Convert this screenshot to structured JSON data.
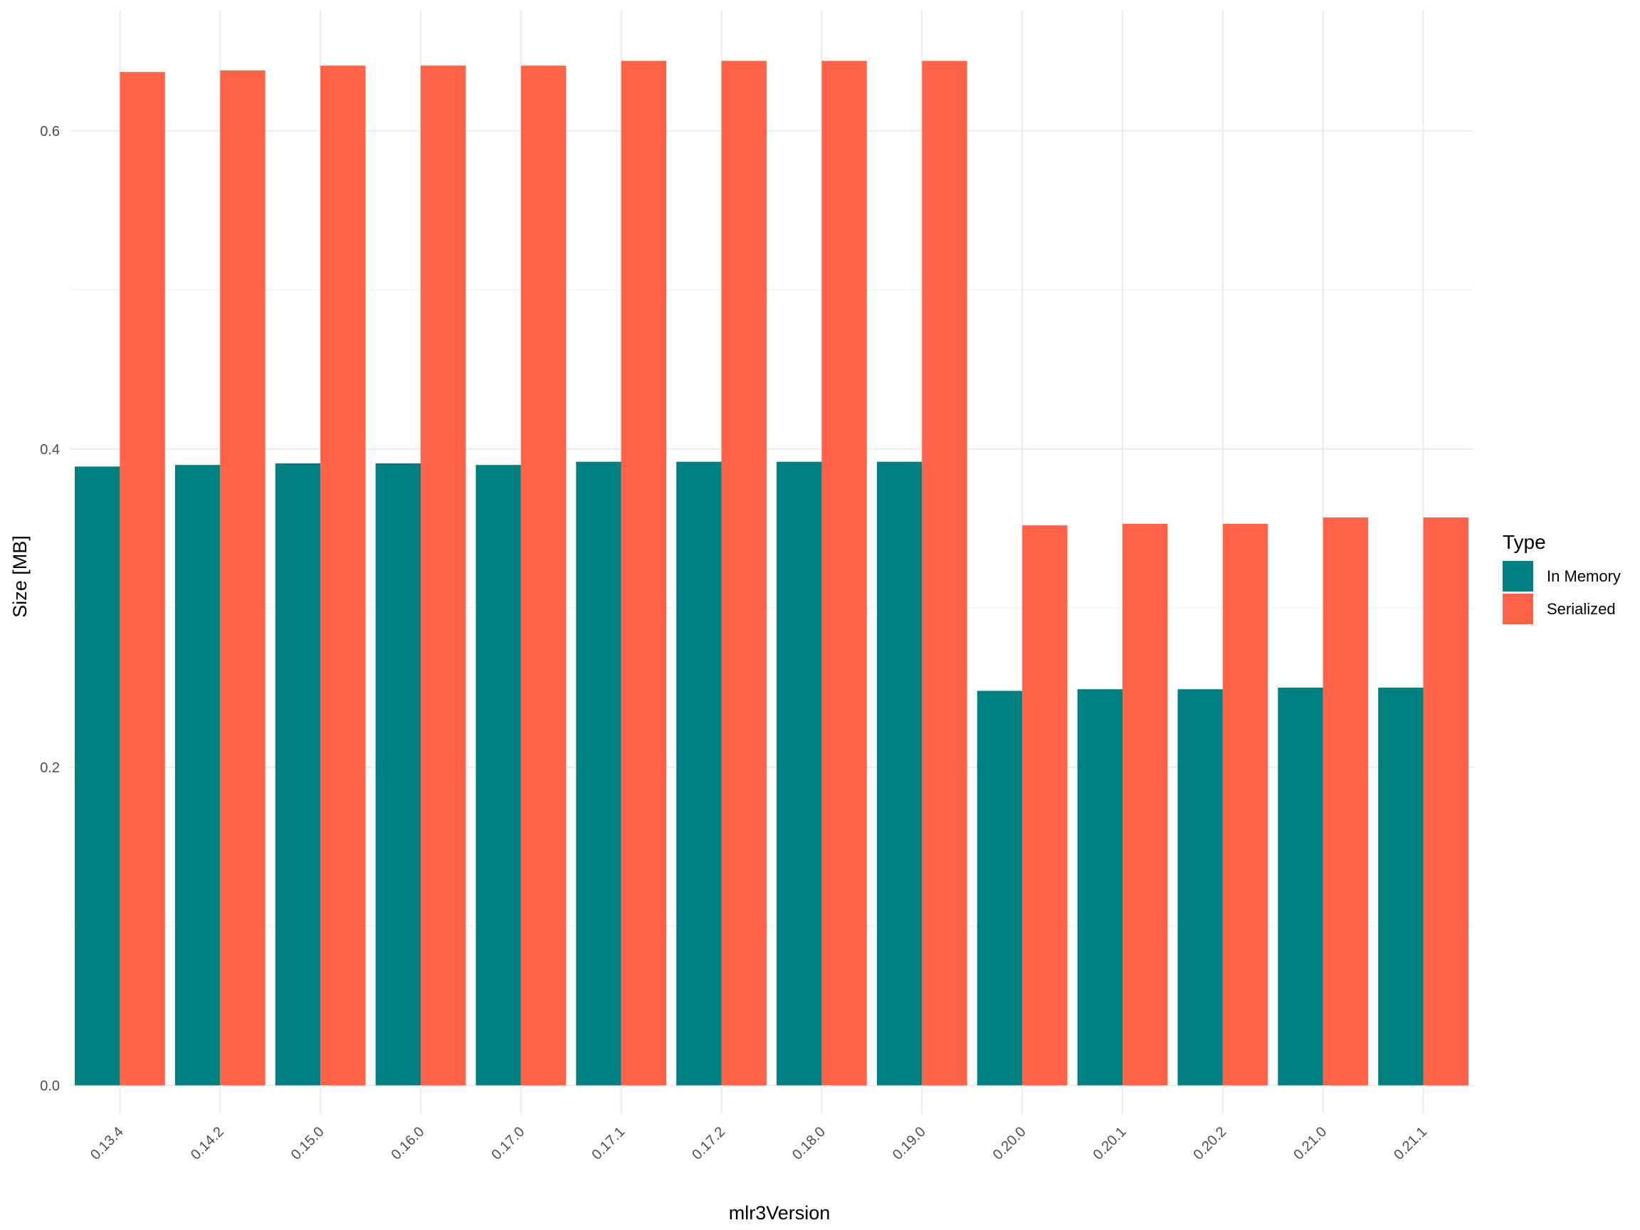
{
  "chart_data": {
    "type": "bar",
    "title": "",
    "xlabel": "mlr3Version",
    "ylabel": "Size [MB]",
    "ylim": [
      -0.018,
      0.676
    ],
    "y_ticks": [
      0.0,
      0.2,
      0.4,
      0.6
    ],
    "y_tick_labels": [
      "0.0",
      "0.2",
      "0.4",
      "0.6"
    ],
    "grid": true,
    "legend": {
      "title": "Type",
      "position": "right"
    },
    "categories": [
      "0.13.4",
      "0.14.2",
      "0.15.0",
      "0.16.0",
      "0.17.0",
      "0.17.1",
      "0.17.2",
      "0.18.0",
      "0.19.0",
      "0.20.0",
      "0.20.1",
      "0.20.2",
      "0.21.0",
      "0.21.1"
    ],
    "series": [
      {
        "name": "In Memory",
        "color": "#008080",
        "values": [
          0.389,
          0.39,
          0.391,
          0.391,
          0.39,
          0.392,
          0.392,
          0.392,
          0.392,
          0.248,
          0.249,
          0.249,
          0.25,
          0.25
        ]
      },
      {
        "name": "Serialized",
        "color": "#FF6347",
        "values": [
          0.637,
          0.638,
          0.641,
          0.641,
          0.641,
          0.644,
          0.644,
          0.644,
          0.644,
          0.352,
          0.353,
          0.353,
          0.357,
          0.357
        ]
      }
    ]
  }
}
